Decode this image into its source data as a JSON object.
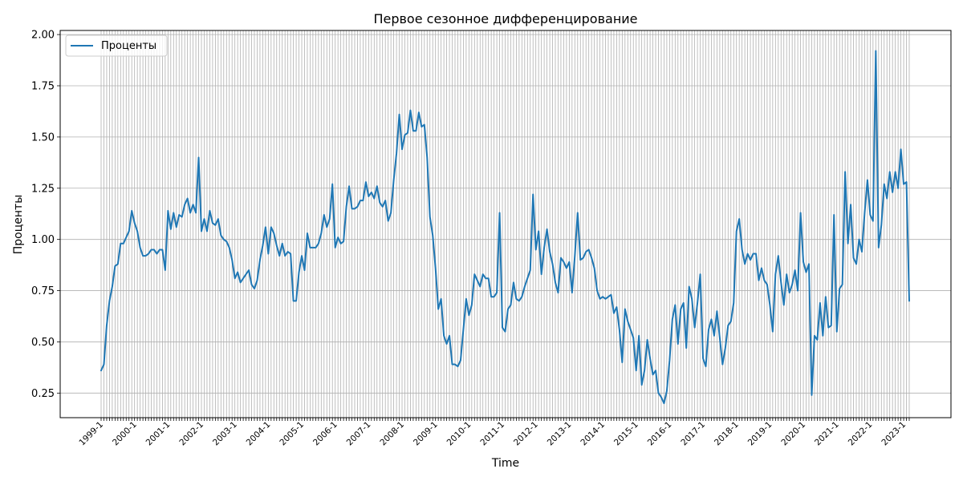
{
  "chart_data": {
    "type": "line",
    "title": "Первое сезонное дифференцирование",
    "xlabel": "Time",
    "ylabel": "Проценты",
    "legend": {
      "position": "top-left",
      "entries": [
        "Проценты"
      ]
    },
    "grid": true,
    "colors": {
      "series": "#1f77b4",
      "grid": "#b0b0b0",
      "axis": "#000000"
    },
    "x_start_year": 1999,
    "x_start_month": 1,
    "x_tick_labels": [
      "1999-1",
      "2000-1",
      "2001-1",
      "2002-1",
      "2003-1",
      "2004-1",
      "2005-1",
      "2006-1",
      "2007-1",
      "2008-1",
      "2009-1",
      "2010-1",
      "2011-1",
      "2012-1",
      "2013-1",
      "2014-1",
      "2015-1",
      "2016-1",
      "2017-1",
      "2018-1",
      "2019-1",
      "2020-1",
      "2021-1",
      "2022-1",
      "2023-1"
    ],
    "y_ticks": [
      "0.25",
      "0.50",
      "0.75",
      "1.00",
      "1.25",
      "1.50",
      "1.75",
      "2.00"
    ],
    "ylim": [
      0.13,
      2.02
    ],
    "series": [
      {
        "name": "Проценты",
        "values": [
          0.36,
          0.39,
          0.58,
          0.7,
          0.77,
          0.87,
          0.88,
          0.98,
          0.98,
          1.01,
          1.04,
          1.14,
          1.08,
          1.04,
          0.96,
          0.92,
          0.92,
          0.93,
          0.95,
          0.95,
          0.93,
          0.95,
          0.95,
          0.85,
          1.14,
          1.05,
          1.13,
          1.06,
          1.12,
          1.11,
          1.17,
          1.2,
          1.13,
          1.17,
          1.13,
          1.4,
          1.04,
          1.1,
          1.04,
          1.14,
          1.08,
          1.07,
          1.1,
          1.02,
          1.0,
          0.99,
          0.96,
          0.9,
          0.81,
          0.84,
          0.79,
          0.81,
          0.83,
          0.85,
          0.78,
          0.76,
          0.8,
          0.9,
          0.97,
          1.06,
          0.93,
          1.06,
          1.03,
          0.97,
          0.92,
          0.98,
          0.92,
          0.94,
          0.93,
          0.7,
          0.7,
          0.84,
          0.92,
          0.85,
          1.03,
          0.96,
          0.96,
          0.96,
          0.98,
          1.03,
          1.12,
          1.06,
          1.1,
          1.27,
          0.96,
          1.01,
          0.98,
          0.99,
          1.16,
          1.26,
          1.15,
          1.15,
          1.16,
          1.19,
          1.19,
          1.28,
          1.21,
          1.23,
          1.2,
          1.26,
          1.18,
          1.16,
          1.19,
          1.09,
          1.13,
          1.29,
          1.42,
          1.61,
          1.44,
          1.51,
          1.52,
          1.63,
          1.53,
          1.53,
          1.62,
          1.55,
          1.56,
          1.4,
          1.11,
          1.02,
          0.86,
          0.66,
          0.71,
          0.53,
          0.49,
          0.53,
          0.39,
          0.39,
          0.38,
          0.41,
          0.56,
          0.71,
          0.63,
          0.68,
          0.83,
          0.8,
          0.77,
          0.83,
          0.81,
          0.81,
          0.72,
          0.72,
          0.74,
          1.13,
          0.57,
          0.55,
          0.66,
          0.68,
          0.79,
          0.71,
          0.7,
          0.72,
          0.77,
          0.81,
          0.85,
          1.22,
          0.95,
          1.04,
          0.83,
          0.96,
          1.05,
          0.94,
          0.88,
          0.79,
          0.74,
          0.91,
          0.89,
          0.86,
          0.89,
          0.74,
          0.92,
          1.13,
          0.9,
          0.91,
          0.94,
          0.95,
          0.91,
          0.86,
          0.75,
          0.71,
          0.72,
          0.71,
          0.72,
          0.73,
          0.64,
          0.67,
          0.56,
          0.4,
          0.66,
          0.6,
          0.56,
          0.52,
          0.36,
          0.53,
          0.29,
          0.36,
          0.51,
          0.42,
          0.34,
          0.36,
          0.25,
          0.23,
          0.2,
          0.26,
          0.41,
          0.61,
          0.68,
          0.49,
          0.66,
          0.69,
          0.47,
          0.77,
          0.71,
          0.57,
          0.69,
          0.83,
          0.42,
          0.38,
          0.56,
          0.61,
          0.53,
          0.65,
          0.52,
          0.39,
          0.47,
          0.58,
          0.6,
          0.69,
          1.04,
          1.1,
          0.95,
          0.88,
          0.93,
          0.9,
          0.93,
          0.93,
          0.8,
          0.86,
          0.8,
          0.78,
          0.68,
          0.55,
          0.83,
          0.92,
          0.79,
          0.68,
          0.83,
          0.74,
          0.78,
          0.85,
          0.75,
          1.13,
          0.89,
          0.84,
          0.88,
          0.24,
          0.53,
          0.51,
          0.69,
          0.53,
          0.72,
          0.57,
          0.58,
          1.12,
          0.55,
          0.76,
          0.78,
          1.33,
          0.98,
          1.17,
          0.91,
          0.88,
          1.0,
          0.94,
          1.13,
          1.29,
          1.12,
          1.09,
          1.92,
          0.96,
          1.07,
          1.27,
          1.2,
          1.33,
          1.23,
          1.33,
          1.25,
          1.44,
          1.27,
          1.28,
          0.7
        ]
      }
    ]
  }
}
